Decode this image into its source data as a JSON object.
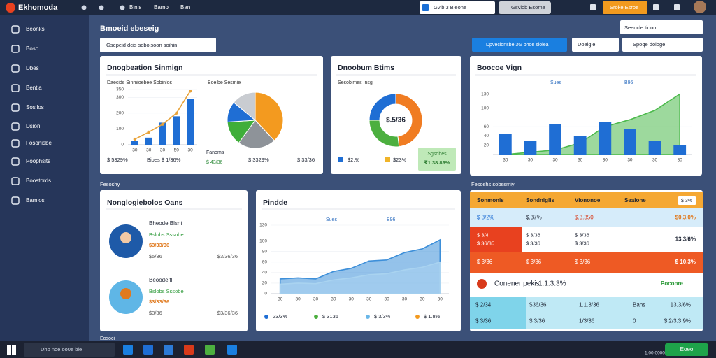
{
  "topbar": {
    "brand": "Ekhomoda",
    "nav": [
      "Binis",
      "Bamo",
      "Ban"
    ],
    "search": "Gvib 3 Bleone",
    "button": "Gsvlob Esome",
    "action": "Sroke Esroe"
  },
  "sidebar": {
    "items": [
      "Beonks",
      "Boso",
      "Dbes",
      "Bentia",
      "Sosilos",
      "Dsion",
      "Fosonisbe",
      "Poophsits",
      "Boostords",
      "Bamios"
    ]
  },
  "header": {
    "title": "Bmoeid ebeseig",
    "filter": "Gsepeid dcis sobolsoon soihin",
    "range": "Seeocle tioom",
    "buttons": [
      "Dpveclonsbe 3G bhoe siolea",
      "Doaigle",
      "Spoqe doioge"
    ]
  },
  "sections": [
    "Fesoshy",
    "Fesoshs sobssmiy",
    "Eosoci"
  ],
  "chart_data": [
    {
      "type": "bar",
      "title": "Dnogbeation Sinmign",
      "subtitle": "Daecids Sinmioebee Sobinlos",
      "categories": [
        "30",
        "30",
        "30",
        "50",
        "30"
      ],
      "series": [
        {
          "type": "bar",
          "color": "#1f6ed4",
          "values": [
            25,
            45,
            140,
            180,
            290
          ]
        },
        {
          "type": "line",
          "color": "#e8a33a",
          "markers": true,
          "values": [
            35,
            80,
            130,
            200,
            340
          ]
        }
      ],
      "ylim": [
        0,
        350
      ],
      "yticks": [
        0,
        100,
        200,
        300,
        350
      ]
    },
    {
      "type": "pie",
      "label": "Boeibe Sesmie",
      "values": [
        38,
        22,
        14,
        12,
        14
      ],
      "colors": [
        "#f39a1f",
        "#8e9399",
        "#3fae3a",
        "#1f6ed4",
        "#c9ccd1"
      ]
    },
    {
      "type": "donut",
      "title": "Dnoobum Btims",
      "subtitle": "Sesobimes Insg",
      "center_label": "$.5/36",
      "values": [
        48,
        27,
        25
      ],
      "colors": [
        "#f07c22",
        "#4caf3f",
        "#1f6ed4"
      ]
    },
    {
      "type": "bar",
      "title": "Boocoe Vign",
      "categories": [
        "30",
        "30",
        "30",
        "30",
        "30",
        "30",
        "30",
        "30"
      ],
      "series": [
        {
          "name": "Sues",
          "type": "bar",
          "color": "#1f6ed4",
          "values": [
            45,
            30,
            65,
            40,
            70,
            55,
            30,
            20
          ]
        },
        {
          "name": "B96",
          "type": "area",
          "color": "#4cba4c",
          "values": [
            0,
            5,
            10,
            25,
            60,
            75,
            95,
            130
          ]
        }
      ],
      "ylim": [
        0,
        140
      ],
      "yticks": [
        20,
        40,
        60,
        100,
        130
      ]
    },
    {
      "type": "area",
      "title": "Pindde",
      "categories": [
        "30",
        "30",
        "30",
        "30",
        "30",
        "30",
        "30",
        "30",
        "30",
        "30"
      ],
      "series": [
        {
          "name": "Sues",
          "type": "area",
          "color": "#3d8fd9",
          "values": [
            28,
            30,
            28,
            42,
            48,
            62,
            64,
            78,
            85,
            102
          ]
        },
        {
          "name": "B96",
          "type": "area",
          "color": "#a9d3f0",
          "values": [
            18,
            20,
            19,
            26,
            30,
            36,
            38,
            45,
            50,
            60
          ]
        }
      ],
      "ylim": [
        0,
        130
      ],
      "yticks": [
        0,
        20,
        40,
        60,
        80,
        100,
        130
      ]
    }
  ],
  "summary": {
    "combo_footer": [
      "$ 5329%",
      "Bioes $ 1/36%",
      "$ 3329%",
      "$ 33/36"
    ],
    "pie_caption": "Fanoms",
    "pie_value": "$ 43/36",
    "donut_legend": [
      "$2.%",
      "$23%"
    ],
    "badge_title": "Sgsobes",
    "badge_value": "₹1.38.89%",
    "area_legend": [
      "23/3%",
      "$ 3136",
      "$ 3/3%",
      "$ 1.8%"
    ]
  },
  "people": {
    "title": "Nonglogiebolos Oans",
    "items": [
      {
        "name": "Bheode Blsnt",
        "status": "Bslobs Sssobe",
        "amount": "$3/33/36",
        "detail": "$5/36",
        "total": "$3/36/36"
      },
      {
        "name": "Beoodeltl",
        "status": "Bslobs Sssobe",
        "amount": "$3/33/36",
        "detail": "$3/36",
        "total": "$3/36/36"
      }
    ]
  },
  "table": {
    "header": [
      "Sonmonis",
      "Sondniglis",
      "Viononoe",
      "Seaione"
    ],
    "header_extra": "$ 3%",
    "rows": [
      [
        "$ 3/2%",
        "$.37%",
        "$.3.350",
        "$0.3.0%"
      ],
      [
        [
          "$ 3/4",
          "$ 36/35"
        ],
        [
          "$ 3/36",
          "$ 3/36"
        ],
        [
          "$ 3/36",
          "$ 3/36"
        ],
        "13.3/6%"
      ],
      [
        "$ 3/36",
        "$ 3/36",
        "$ 3/36",
        "$ 10.3%"
      ]
    ],
    "highlight": {
      "label": "Conener pekis",
      "value": "1.1.3.3%",
      "status": "Poconre"
    },
    "detail_rows": [
      [
        "$ 2/34",
        "$36/36",
        "1.1.3/36",
        "Bans",
        "13.3/6%"
      ],
      [
        "$ 3/36",
        "$ 3/36",
        "1/3/36",
        "0",
        "$.2/3.3.9%"
      ]
    ]
  },
  "taskbar": {
    "search": "Dho noe oo0e bie",
    "clock": "1:00:0000",
    "button": "Eoeo"
  }
}
